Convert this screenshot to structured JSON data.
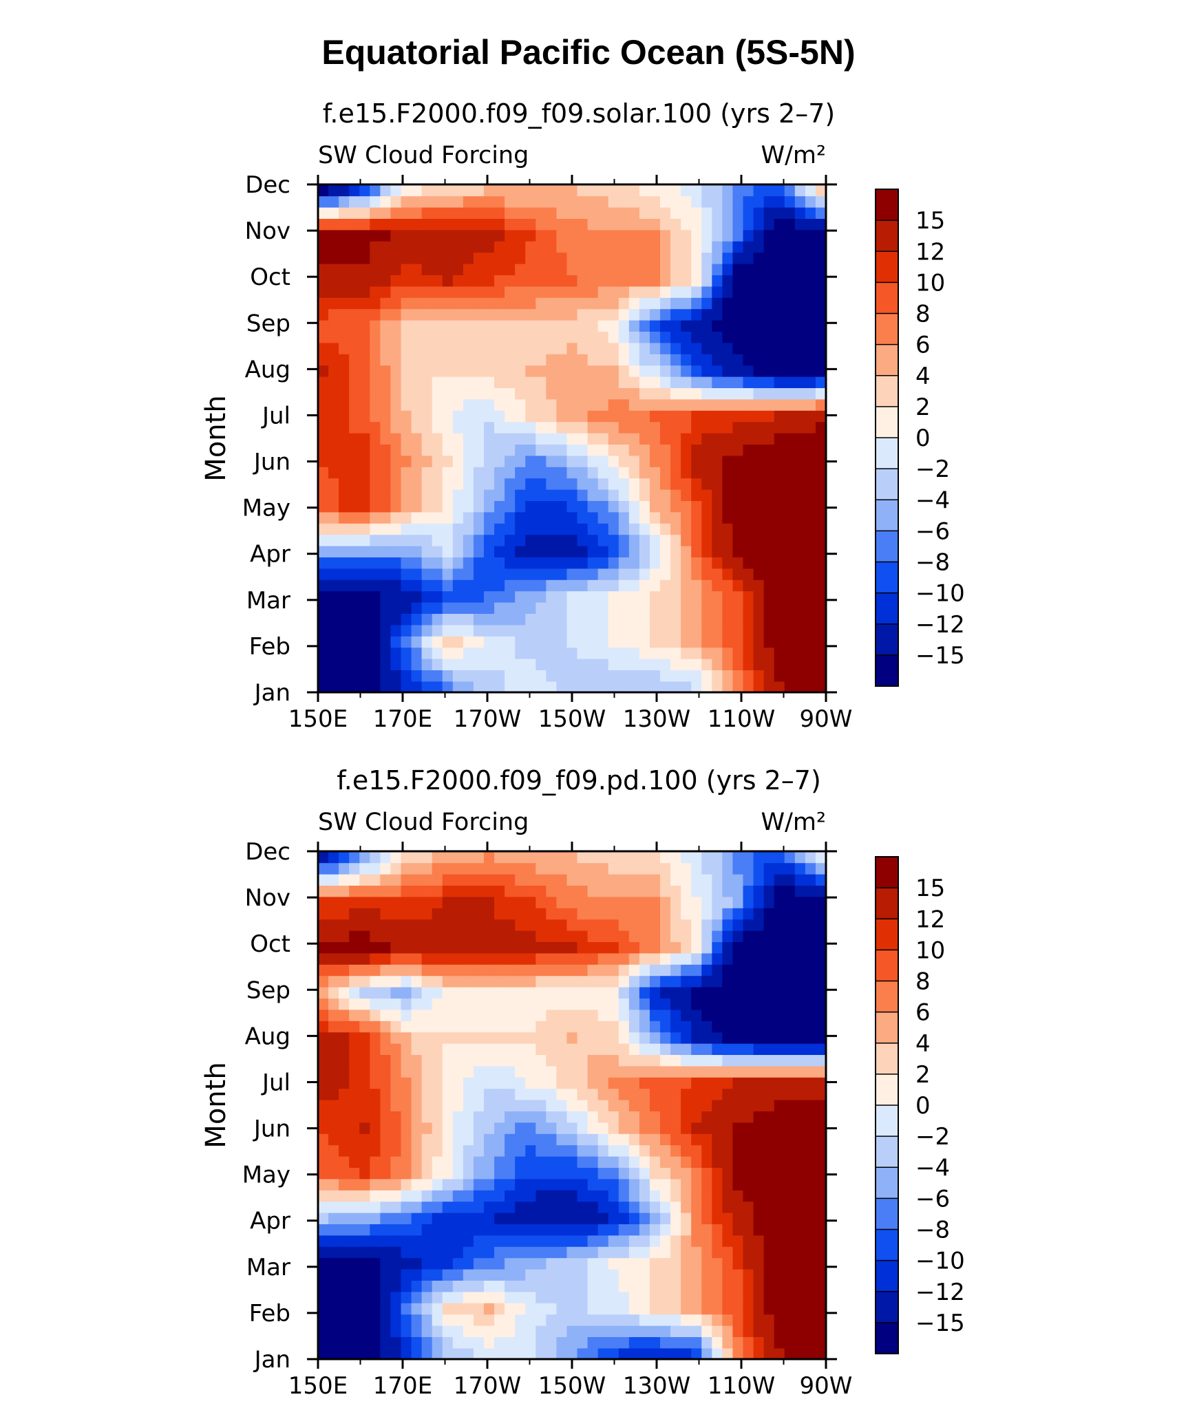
{
  "title": "Equatorial Pacific Ocean (5S-5N)",
  "colors": {
    "levels": [
      "#000080",
      "#0018a8",
      "#0030d8",
      "#1050f0",
      "#4a7ef7",
      "#8fb1f8",
      "#b9cffa",
      "#dbe9fd",
      "#fff0e3",
      "#fdd3ba",
      "#fcaa82",
      "#fa7f4d",
      "#f55726",
      "#e03003",
      "#b81c03",
      "#8e0000"
    ],
    "frame": "#000000"
  },
  "chart_data": [
    {
      "type": "heatmap",
      "title": "f.e15.F2000.f09_f09.solar.100 (yrs 2–7)",
      "left_label": "SW Cloud Forcing",
      "right_label": "W/m²",
      "ylabel": "Month",
      "xlabel": "",
      "x_ticks": [
        "150E",
        "170E",
        "170W",
        "150W",
        "130W",
        "110W",
        "90W"
      ],
      "y_ticks": [
        "Jan",
        "Feb",
        "Mar",
        "Apr",
        "May",
        "Jun",
        "Jul",
        "Aug",
        "Sep",
        "Oct",
        "Nov",
        "Dec"
      ],
      "levels": [
        -15,
        -12,
        -10,
        -8,
        -6,
        -4,
        -2,
        0,
        2,
        4,
        6,
        8,
        10,
        12,
        15
      ],
      "colorbar_labels": [
        "15",
        "12",
        "10",
        "8",
        "6",
        "4",
        "2",
        "0",
        "−2",
        "−4",
        "−6",
        "−8",
        "−10",
        "−12",
        "−15"
      ],
      "x_values": [
        150,
        160,
        170,
        180,
        190,
        200,
        210,
        220,
        230,
        240,
        250,
        260,
        270
      ],
      "rows": [
        {
          "month": "Jan",
          "values": [
            -18,
            -18,
            -12,
            -7,
            -3,
            -1,
            -3,
            -4,
            -4,
            -2,
            7,
            14,
            18
          ]
        },
        {
          "month": "Feb",
          "values": [
            -18,
            -18,
            -7,
            3,
            -1,
            -3,
            -2,
            0,
            2,
            5,
            9,
            18,
            18
          ]
        },
        {
          "month": "Mar",
          "values": [
            -18,
            -16,
            -14,
            -10,
            -8,
            -5,
            -2,
            0,
            2,
            5,
            9,
            18,
            18
          ]
        },
        {
          "month": "Apr",
          "values": [
            -5,
            -6,
            -6,
            -2,
            -10,
            -13,
            -14,
            -10,
            -2,
            8,
            16,
            18,
            18
          ]
        },
        {
          "month": "May",
          "values": [
            9,
            11,
            5,
            1,
            -5,
            -11,
            -10,
            -5,
            4,
            9,
            18,
            18,
            18
          ]
        },
        {
          "month": "Jun",
          "values": [
            10,
            11,
            6,
            2,
            -3,
            -7,
            -4,
            1,
            6,
            13,
            16,
            18,
            18
          ]
        },
        {
          "month": "Jul",
          "values": [
            11,
            9,
            4,
            0,
            -2,
            2,
            5,
            7,
            8,
            10,
            11,
            12,
            14
          ]
        },
        {
          "month": "Aug",
          "values": [
            12,
            9,
            3,
            2,
            3,
            4,
            5,
            4,
            -2,
            -10,
            -14,
            -18,
            -18
          ]
        },
        {
          "month": "Sep",
          "values": [
            9,
            8,
            3,
            2,
            3,
            3,
            3,
            1,
            -10,
            -14,
            -18,
            -18,
            -18
          ]
        },
        {
          "month": "Oct",
          "values": [
            13,
            14,
            11,
            12,
            10,
            9,
            8,
            7,
            6,
            1,
            -18,
            -18,
            -18
          ]
        },
        {
          "month": "Nov",
          "values": [
            17,
            16,
            14,
            14,
            13,
            10,
            7,
            6,
            6,
            1,
            -8,
            -18,
            -18
          ]
        },
        {
          "month": "Dec",
          "values": [
            -16,
            -9,
            1,
            3,
            4,
            4,
            4,
            3,
            1,
            -1,
            -7,
            -10,
            3
          ]
        }
      ]
    },
    {
      "type": "heatmap",
      "title": "f.e15.F2000.f09_f09.pd.100 (yrs 2–7)",
      "left_label": "SW Cloud Forcing",
      "right_label": "W/m²",
      "ylabel": "Month",
      "xlabel": "",
      "x_ticks": [
        "150E",
        "170E",
        "170W",
        "150W",
        "130W",
        "110W",
        "90W"
      ],
      "y_ticks": [
        "Jan",
        "Feb",
        "Mar",
        "Apr",
        "May",
        "Jun",
        "Jul",
        "Aug",
        "Sep",
        "Oct",
        "Nov",
        "Dec"
      ],
      "levels": [
        -15,
        -12,
        -10,
        -8,
        -6,
        -4,
        -2,
        0,
        2,
        4,
        6,
        8,
        10,
        12,
        15
      ],
      "colorbar_labels": [
        "15",
        "12",
        "10",
        "8",
        "6",
        "4",
        "2",
        "0",
        "−2",
        "−4",
        "−6",
        "−8",
        "−10",
        "−12",
        "−15"
      ],
      "x_values": [
        150,
        160,
        170,
        180,
        190,
        200,
        210,
        220,
        230,
        240,
        250,
        260,
        270
      ],
      "rows": [
        {
          "month": "Jan",
          "values": [
            -18,
            -18,
            -12,
            -4,
            -1,
            -2,
            -6,
            -10,
            -12,
            -10,
            7,
            14,
            18
          ]
        },
        {
          "month": "Feb",
          "values": [
            -18,
            -18,
            -8,
            2,
            4,
            -1,
            -3,
            -1,
            2,
            5,
            9,
            18,
            18
          ]
        },
        {
          "month": "Mar",
          "values": [
            -18,
            -16,
            -13,
            -11,
            -7,
            -5,
            -3,
            0,
            2,
            5,
            10,
            18,
            18
          ]
        },
        {
          "month": "Apr",
          "values": [
            -4,
            -5,
            -8,
            -11,
            -12,
            -14,
            -15,
            -12,
            -6,
            7,
            13,
            18,
            18
          ]
        },
        {
          "month": "May",
          "values": [
            9,
            10,
            7,
            0,
            -6,
            -10,
            -10,
            -7,
            2,
            7,
            16,
            18,
            18
          ]
        },
        {
          "month": "Jun",
          "values": [
            10,
            12,
            7,
            1,
            -4,
            -7,
            -3,
            3,
            7,
            12,
            15,
            18,
            18
          ]
        },
        {
          "month": "Jul",
          "values": [
            13,
            11,
            6,
            1,
            -2,
            0,
            3,
            6,
            9,
            10,
            12,
            12,
            13
          ]
        },
        {
          "month": "Aug",
          "values": [
            13,
            11,
            4,
            2,
            2,
            2,
            4,
            3,
            -5,
            -13,
            -17,
            -18,
            -18
          ]
        },
        {
          "month": "Sep",
          "values": [
            4,
            -3,
            -5,
            1,
            1,
            1,
            1,
            0,
            -12,
            -16,
            -18,
            -18,
            -18
          ]
        },
        {
          "month": "Oct",
          "values": [
            15,
            17,
            14,
            14,
            13,
            13,
            12,
            10,
            7,
            1,
            -18,
            -18,
            -18
          ]
        },
        {
          "month": "Nov",
          "values": [
            10,
            11,
            10,
            12,
            12,
            10,
            7,
            6,
            6,
            0,
            -5,
            -18,
            -18
          ]
        },
        {
          "month": "Dec",
          "values": [
            -14,
            -6,
            2,
            5,
            6,
            5,
            4,
            3,
            2,
            -1,
            -7,
            -10,
            -2
          ]
        }
      ]
    }
  ]
}
